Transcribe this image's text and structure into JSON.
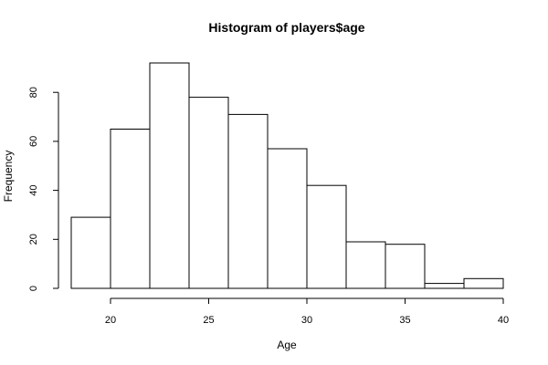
{
  "chart_data": {
    "type": "bar",
    "title": "Histogram of players$age",
    "xlabel": "Age",
    "ylabel": "Frequency",
    "bins": [
      {
        "from": 18,
        "to": 20,
        "count": 29
      },
      {
        "from": 20,
        "to": 22,
        "count": 65
      },
      {
        "from": 22,
        "to": 24,
        "count": 92
      },
      {
        "from": 24,
        "to": 26,
        "count": 78
      },
      {
        "from": 26,
        "to": 28,
        "count": 71
      },
      {
        "from": 28,
        "to": 30,
        "count": 57
      },
      {
        "from": 30,
        "to": 32,
        "count": 42
      },
      {
        "from": 32,
        "to": 34,
        "count": 19
      },
      {
        "from": 34,
        "to": 36,
        "count": 18
      },
      {
        "from": 36,
        "to": 38,
        "count": 2
      },
      {
        "from": 38,
        "to": 40,
        "count": 4
      }
    ],
    "x_ticks": [
      20,
      25,
      30,
      35,
      40
    ],
    "y_ticks": [
      0,
      20,
      40,
      60,
      80
    ],
    "xlim": [
      18,
      40
    ],
    "ylim": [
      0,
      92
    ],
    "grid": false,
    "bar_fill": "#ffffff",
    "bar_stroke": "#000000"
  }
}
